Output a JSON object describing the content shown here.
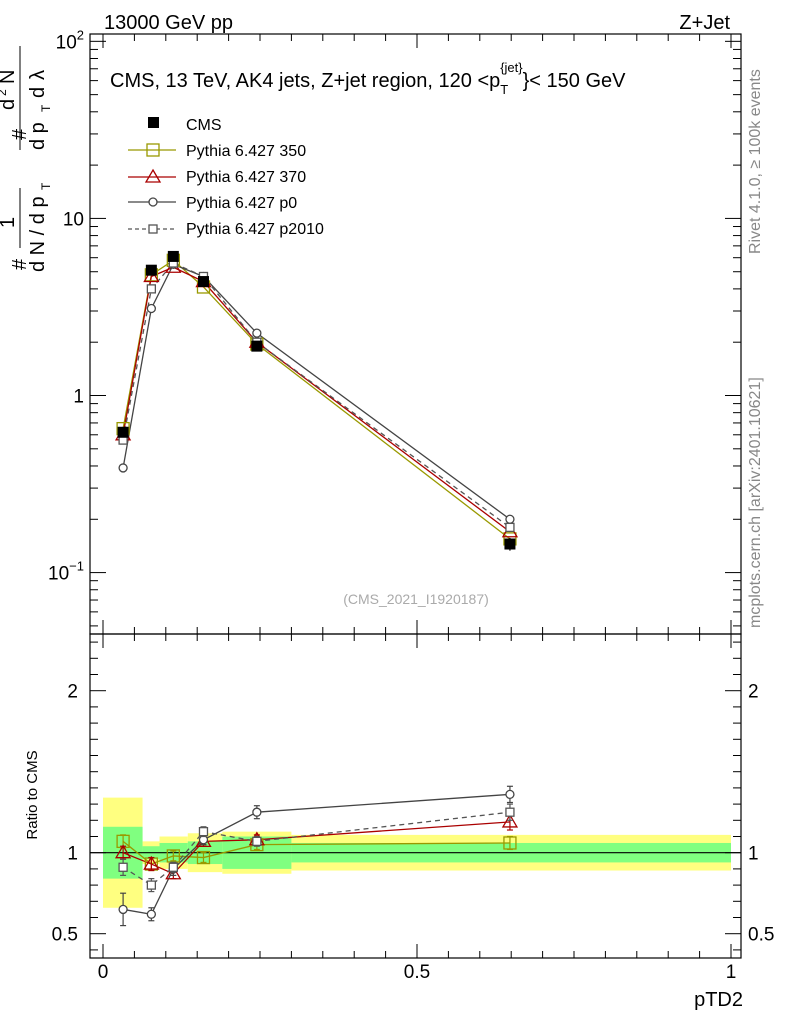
{
  "header": {
    "left": "13000 GeV pp",
    "right": "Z+Jet"
  },
  "side_labels": {
    "rivet": "Rivet 4.1.0, ≥ 100k events",
    "mcplots": "mcplots.cern.ch [arXiv:2401.10621]"
  },
  "chart_data": {
    "type": "line",
    "title": "CMS, 13 TeV, AK4 jets, Z+jet region, 120 <p_T^{jet}< 150 GeV",
    "title_parts": {
      "main": "CMS, 13 TeV, AK4 jets, Z+jet region, 120 <p",
      "sub": "T",
      "sup": "{jet}",
      "tail": "}< 150 GeV"
    },
    "watermark": "(CMS_2021_I1920187)",
    "xlabel": "pTD2",
    "ylabel_top": "1/dN/dp_T d²N/dp_T dλ",
    "ylabel_bottom": "Ratio to CMS",
    "xlim": [
      0,
      1
    ],
    "ylim_main": [
      0.045,
      110
    ],
    "yscale_main": "log",
    "ylim_ratio": [
      0.35,
      2.35
    ],
    "x_ticks": [
      "0",
      "0.5",
      "1"
    ],
    "main_y_ticks": [
      {
        "value": 0.1,
        "mant": "10",
        "exp": "−1"
      },
      {
        "value": 1,
        "mant": "1",
        "exp": ""
      },
      {
        "value": 10,
        "mant": "10",
        "exp": ""
      },
      {
        "value": 100,
        "mant": "10",
        "exp": "2"
      }
    ],
    "ratio_y_ticks": [
      "0.5",
      "1",
      "2"
    ],
    "x": [
      0.032,
      0.077,
      0.112,
      0.16,
      0.245,
      0.648
    ],
    "bin_edges": [
      0.0,
      0.063,
      0.09,
      0.135,
      0.19,
      0.3,
      1.0
    ],
    "cms": {
      "name": "CMS",
      "values": [
        0.62,
        5.1,
        6.1,
        4.4,
        1.9,
        0.145
      ],
      "errors": [
        0.04,
        0.3,
        0.25,
        0.2,
        0.1,
        0.012
      ]
    },
    "bands": {
      "green": [
        0.16,
        0.04,
        0.06,
        0.07,
        0.1,
        0.06
      ],
      "yellow": [
        0.34,
        0.07,
        0.1,
        0.12,
        0.13,
        0.11
      ]
    },
    "series": [
      {
        "name": "Pythia 6.427 350",
        "color": "#999900",
        "marker": "square",
        "dash": false,
        "values": [
          0.65,
          4.8,
          5.8,
          4.1,
          1.95,
          0.155
        ],
        "ratio": [
          1.07,
          0.93,
          0.98,
          0.97,
          1.05,
          1.06
        ],
        "ratio_err": [
          0.04,
          0.04,
          0.03,
          0.03,
          0.03,
          0.04
        ]
      },
      {
        "name": "Pythia 6.427 370",
        "color": "#aa0000",
        "marker": "triangle",
        "dash": false,
        "values": [
          0.6,
          4.7,
          5.3,
          4.4,
          2.0,
          0.17
        ],
        "ratio": [
          1.0,
          0.93,
          0.87,
          1.07,
          1.08,
          1.19
        ],
        "ratio_err": [
          0.04,
          0.04,
          0.03,
          0.03,
          0.03,
          0.05
        ]
      },
      {
        "name": "Pythia 6.427 p0",
        "color": "#444444",
        "marker": "circle",
        "dash": false,
        "values": [
          0.39,
          3.1,
          5.5,
          4.7,
          2.25,
          0.2
        ],
        "ratio": [
          0.65,
          0.62,
          0.9,
          1.08,
          1.25,
          1.36
        ],
        "ratio_err": [
          0.1,
          0.04,
          0.04,
          0.03,
          0.04,
          0.05
        ]
      },
      {
        "name": "Pythia 6.427 p2010",
        "color": "#555555",
        "marker": "square-small",
        "dash": true,
        "values": [
          0.56,
          4.0,
          5.6,
          4.7,
          2.0,
          0.18
        ],
        "ratio": [
          0.91,
          0.8,
          0.91,
          1.13,
          1.07,
          1.25
        ],
        "ratio_err": [
          0.05,
          0.04,
          0.03,
          0.03,
          0.03,
          0.05
        ]
      }
    ]
  }
}
